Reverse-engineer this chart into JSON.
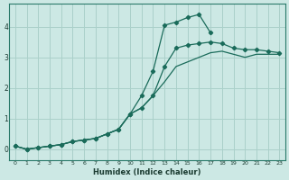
{
  "title": "",
  "xlabel": "Humidex (Indice chaleur)",
  "bg_color": "#cce8e4",
  "grid_color": "#aad0ca",
  "line_color": "#1a6b5a",
  "xlim": [
    -0.5,
    23.5
  ],
  "ylim": [
    -0.35,
    4.75
  ],
  "xticks": [
    0,
    1,
    2,
    3,
    4,
    5,
    6,
    7,
    8,
    9,
    10,
    11,
    12,
    13,
    14,
    15,
    16,
    17,
    18,
    19,
    20,
    21,
    22,
    23
  ],
  "yticks": [
    0,
    1,
    2,
    3,
    4
  ],
  "x": [
    0,
    1,
    2,
    3,
    4,
    5,
    6,
    7,
    8,
    9,
    10,
    11,
    12,
    13,
    14,
    15,
    16,
    17,
    18,
    19,
    20,
    21,
    22,
    23
  ],
  "line1_x": [
    0,
    1,
    2,
    3,
    4,
    5,
    6,
    7,
    8,
    9,
    10,
    11,
    12,
    13,
    14,
    15,
    16,
    17
  ],
  "line1_y": [
    0.1,
    0.0,
    0.05,
    0.1,
    0.15,
    0.25,
    0.3,
    0.35,
    0.5,
    0.65,
    1.15,
    1.75,
    2.55,
    4.05,
    4.15,
    4.3,
    4.4,
    3.8
  ],
  "line2_x": [
    0,
    1,
    2,
    3,
    4,
    5,
    6,
    7,
    8,
    9,
    10,
    11,
    12,
    13,
    14,
    15,
    16,
    17,
    18,
    19,
    20,
    21,
    22,
    23
  ],
  "line2_y": [
    0.1,
    0.0,
    0.05,
    0.1,
    0.15,
    0.25,
    0.3,
    0.35,
    0.5,
    0.65,
    1.15,
    1.35,
    1.75,
    2.7,
    3.3,
    3.4,
    3.45,
    3.5,
    3.45,
    3.3,
    3.25,
    3.25,
    3.2,
    3.15
  ],
  "line3_x": [
    0,
    1,
    2,
    3,
    4,
    5,
    6,
    7,
    8,
    9,
    10,
    11,
    12,
    13,
    14,
    15,
    16,
    17,
    18,
    19,
    20,
    21,
    22,
    23
  ],
  "line3_y": [
    0.1,
    0.0,
    0.05,
    0.1,
    0.15,
    0.25,
    0.3,
    0.35,
    0.5,
    0.65,
    1.15,
    1.35,
    1.75,
    2.2,
    2.7,
    2.85,
    3.0,
    3.15,
    3.2,
    3.1,
    3.0,
    3.1,
    3.1,
    3.1
  ]
}
